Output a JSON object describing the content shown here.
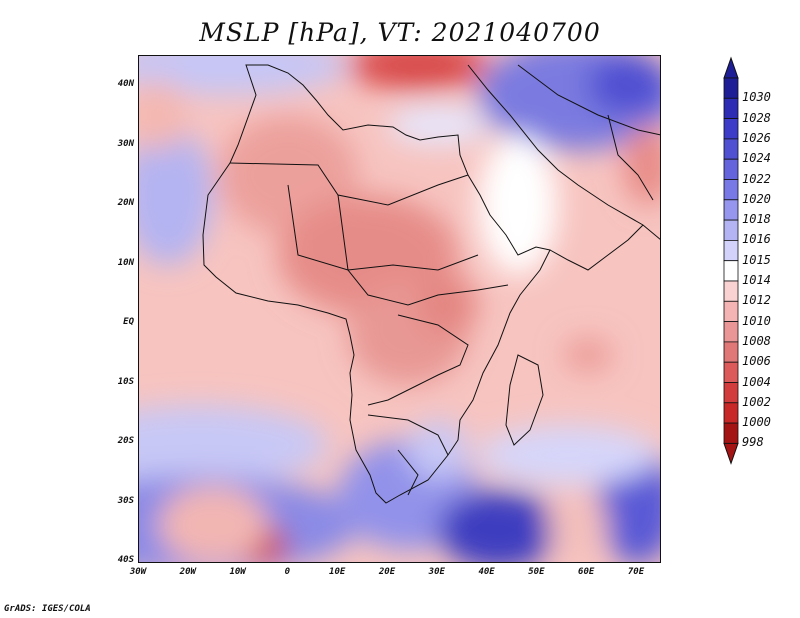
{
  "title": "MSLP [hPa], VT: 2021040700",
  "credit": "GrADS: IGES/COLA",
  "map": {
    "region": "Africa",
    "lon_range": [
      -30,
      75
    ],
    "lat_range": [
      -40,
      45
    ],
    "lat_ticks": [
      "40N",
      "30N",
      "20N",
      "10N",
      "EQ",
      "10S",
      "20S",
      "30S",
      "40S"
    ],
    "lon_ticks": [
      "30W",
      "20W",
      "10W",
      "0",
      "10E",
      "20E",
      "30E",
      "40E",
      "50E",
      "60E",
      "70E"
    ]
  },
  "colorbar": {
    "labels": [
      "1030",
      "1028",
      "1026",
      "1024",
      "1022",
      "1020",
      "1018",
      "1016",
      "1015",
      "1014",
      "1012",
      "1010",
      "1008",
      "1006",
      "1004",
      "1002",
      "1000",
      "998"
    ],
    "colors": [
      "#1e1e96",
      "#2c2cb4",
      "#3c3cc8",
      "#5050d2",
      "#6464dc",
      "#7878e6",
      "#9696ee",
      "#b4b4f4",
      "#d2d2fa",
      "#ffffff",
      "#fad2d2",
      "#f5b4b4",
      "#eb9696",
      "#e17878",
      "#dc5a5a",
      "#d23c3c",
      "#c82828",
      "#a51414"
    ]
  }
}
